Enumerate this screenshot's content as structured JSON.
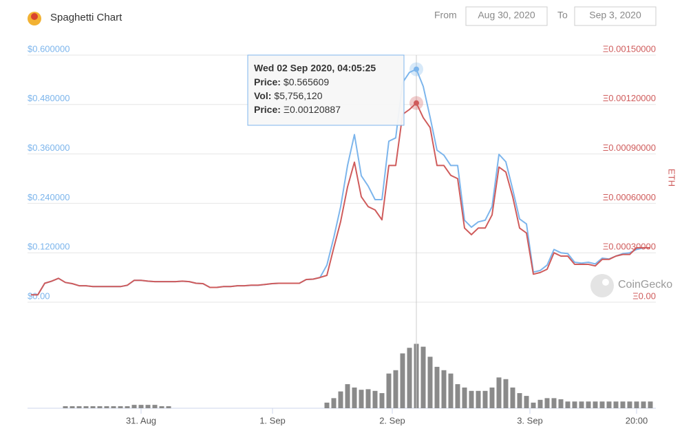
{
  "header": {
    "title": "Spaghetti Chart",
    "from_label": "From",
    "from_date": "Aug 30, 2020",
    "to_label": "To",
    "to_date": "Sep 3, 2020"
  },
  "chart_data": {
    "type": "line",
    "y2_label": "ETH",
    "watermark": "CoinGecko",
    "xlim": [
      -0.5,
      90.8
    ],
    "xticks": [
      {
        "value": 16,
        "label": "31. Aug"
      },
      {
        "value": 35.1,
        "label": "1. Sep"
      },
      {
        "value": 52.5,
        "label": "2. Sep"
      },
      {
        "value": 72.5,
        "label": "3. Sep"
      },
      {
        "value": 88,
        "label": "20:00"
      }
    ],
    "ylim": [
      0,
      0.6
    ],
    "yticks": [
      {
        "value": 0,
        "label": "$0.00"
      },
      {
        "value": 0.12,
        "label": "$0.120000"
      },
      {
        "value": 0.24,
        "label": "$0.240000"
      },
      {
        "value": 0.36,
        "label": "$0.360000"
      },
      {
        "value": 0.48,
        "label": "$0.480000"
      },
      {
        "value": 0.6,
        "label": "$0.600000"
      }
    ],
    "y2lim": [
      0,
      0.0015
    ],
    "y2ticks": [
      {
        "value": 0,
        "label": "Ξ0.00"
      },
      {
        "value": 0.0003,
        "label": "Ξ0.00030000"
      },
      {
        "value": 0.0006,
        "label": "Ξ0.00060000"
      },
      {
        "value": 0.0009,
        "label": "Ξ0.00090000"
      },
      {
        "value": 0.0012,
        "label": "Ξ0.00120000"
      },
      {
        "value": 0.0015,
        "label": "Ξ0.00150000"
      }
    ],
    "grid": true,
    "series": [
      {
        "color": "#7cb5ec",
        "values": [
          0.018,
          0.018,
          0.046,
          0.051,
          0.058,
          0.048,
          0.045,
          0.04,
          0.04,
          0.038,
          0.038,
          0.038,
          0.038,
          0.038,
          0.041,
          0.053,
          0.053,
          0.051,
          0.05,
          0.05,
          0.05,
          0.05,
          0.051,
          0.05,
          0.046,
          0.045,
          0.036,
          0.036,
          0.038,
          0.038,
          0.04,
          0.04,
          0.041,
          0.041,
          0.043,
          0.045,
          0.046,
          0.046,
          0.046,
          0.046,
          0.055,
          0.056,
          0.06,
          0.09,
          0.157,
          0.232,
          0.332,
          0.407,
          0.307,
          0.282,
          0.249,
          0.249,
          0.391,
          0.399,
          0.533,
          0.558,
          0.565609,
          0.524,
          0.449,
          0.369,
          0.357,
          0.332,
          0.332,
          0.199,
          0.182,
          0.195,
          0.199,
          0.232,
          0.359,
          0.341,
          0.274,
          0.202,
          0.19,
          0.073,
          0.077,
          0.09,
          0.128,
          0.12,
          0.118,
          0.097,
          0.095,
          0.097,
          0.093,
          0.107,
          0.105,
          0.112,
          0.118,
          0.12,
          0.128,
          0.132,
          0.132
        ]
      },
      {
        "color": "#cf5b5b",
        "axis": "y2",
        "values": [
          4.5e-05,
          4.5e-05,
          0.000115,
          0.000128,
          0.000145,
          0.00012,
          0.000113,
          0.0001,
          0.0001,
          9.5e-05,
          9.5e-05,
          9.5e-05,
          9.5e-05,
          9.5e-05,
          0.000103,
          0.000133,
          0.000133,
          0.000128,
          0.000125,
          0.000125,
          0.000125,
          0.000125,
          0.000128,
          0.000125,
          0.000115,
          0.000113,
          9e-05,
          9e-05,
          9.5e-05,
          9.5e-05,
          0.0001,
          0.0001,
          0.000103,
          0.000103,
          0.000108,
          0.000113,
          0.000115,
          0.000115,
          0.000115,
          0.000115,
          0.000138,
          0.00014,
          0.00015,
          0.000163,
          0.00033,
          0.00049,
          0.0007,
          0.00085,
          0.00064,
          0.00058,
          0.00056,
          0.0005,
          0.00083,
          0.00083,
          0.00114,
          0.00117,
          0.00120887,
          0.00112,
          0.00106,
          0.00083,
          0.00083,
          0.00077,
          0.00075,
          0.00045,
          0.00041,
          0.00045,
          0.00045,
          0.00053,
          0.00082,
          0.00079,
          0.00064,
          0.00045,
          0.00042,
          0.00017,
          0.00018,
          0.0002,
          0.0003,
          0.00028,
          0.00028,
          0.00023,
          0.00023,
          0.00023,
          0.00022,
          0.00026,
          0.00026,
          0.00028,
          0.00029,
          0.00029,
          0.00033,
          0.00033,
          0.00033
        ]
      }
    ],
    "volume": {
      "color": "#8a8a8a",
      "ylim": [
        0,
        8000000
      ],
      "values": [
        0,
        0,
        0,
        0,
        0,
        180000,
        180000,
        180000,
        180000,
        180000,
        180000,
        180000,
        180000,
        180000,
        180000,
        300000,
        300000,
        300000,
        300000,
        180000,
        180000,
        0,
        0,
        0,
        0,
        0,
        0,
        0,
        0,
        0,
        0,
        0,
        0,
        0,
        0,
        0,
        0,
        0,
        0,
        0,
        0,
        0,
        0,
        500000,
        900000,
        1500000,
        2150000,
        1850000,
        1650000,
        1700000,
        1550000,
        1350000,
        3100000,
        3400000,
        4900000,
        5400000,
        5756120,
        5500000,
        4600000,
        3700000,
        3400000,
        3100000,
        2150000,
        1850000,
        1550000,
        1550000,
        1550000,
        1850000,
        2750000,
        2600000,
        1850000,
        1350000,
        1100000,
        500000,
        750000,
        900000,
        900000,
        800000,
        600000,
        600000,
        600000,
        600000,
        600000,
        600000,
        600000,
        600000,
        600000,
        600000,
        600000,
        600000,
        600000
      ]
    },
    "tooltip": {
      "index": 56,
      "date": "Wed 02 Sep 2020, 04:05:25",
      "rows": [
        {
          "label": "Price:",
          "value": "$0.565609"
        },
        {
          "label": "Vol:",
          "value": "$5,756,120"
        },
        {
          "label": "Price:",
          "value": "Ξ0.00120887"
        }
      ]
    }
  }
}
